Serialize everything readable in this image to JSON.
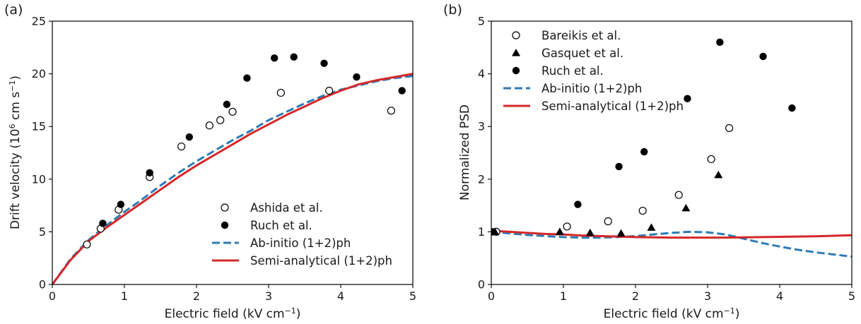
{
  "colors": {
    "ab_initio": "#2c7bb6",
    "semi_analytical": "#d62728",
    "markers": "#000000"
  },
  "chart_data": [
    {
      "type": "scatter",
      "panel": "(a)",
      "xlabel": "Electric field (kV cm",
      "xlabel_sup": "−1",
      "xlabel_end": ")",
      "ylabel": "Drift velocity (10",
      "ylabel_sup": "6",
      "ylabel_mid": " cm s",
      "ylabel_sup2": "−1",
      "ylabel_end": ")",
      "xlim": [
        0,
        5
      ],
      "ylim": [
        0,
        25
      ],
      "xticks": [
        0,
        1,
        2,
        3,
        4,
        5
      ],
      "yticks": [
        0,
        5,
        10,
        15,
        20,
        25
      ],
      "grid": false,
      "legend_position": "lower-right",
      "series": [
        {
          "name": "Ashida et al.",
          "kind": "markers",
          "marker": "open-circle",
          "x": [
            0.48,
            0.67,
            0.92,
            1.35,
            1.79,
            2.18,
            2.33,
            2.5,
            3.17,
            3.84,
            4.7
          ],
          "y": [
            3.8,
            5.3,
            7.1,
            10.2,
            13.1,
            15.1,
            15.6,
            16.4,
            18.2,
            18.4,
            16.5
          ]
        },
        {
          "name": "Ruch et al.",
          "kind": "markers",
          "marker": "filled-circle",
          "x": [
            0.7,
            0.95,
            1.35,
            1.9,
            2.42,
            2.7,
            3.08,
            3.35,
            3.77,
            4.22,
            4.85
          ],
          "y": [
            5.8,
            7.6,
            10.6,
            14.0,
            17.1,
            19.6,
            21.5,
            21.6,
            21.0,
            19.7,
            18.4
          ]
        },
        {
          "name": "Ab-initio (1+2)ph",
          "kind": "line",
          "style": "dashed",
          "x": [
            0,
            0.25,
            0.5,
            0.75,
            1.0,
            1.25,
            1.5,
            1.75,
            2.0,
            2.25,
            2.5,
            2.75,
            3.0,
            3.25,
            3.5,
            3.75,
            4.0,
            4.25,
            4.5,
            4.75,
            5.0
          ],
          "y": [
            0,
            2.4,
            4.2,
            5.6,
            6.9,
            8.1,
            9.4,
            10.6,
            11.7,
            12.7,
            13.7,
            14.6,
            15.6,
            16.4,
            17.2,
            17.9,
            18.5,
            18.9,
            19.3,
            19.6,
            19.8
          ]
        },
        {
          "name": "Semi-analytical (1+2)ph",
          "kind": "line",
          "style": "solid",
          "x": [
            0,
            0.25,
            0.5,
            0.75,
            1.0,
            1.25,
            1.5,
            1.75,
            2.0,
            2.25,
            2.5,
            2.75,
            3.0,
            3.25,
            3.5,
            3.75,
            4.0,
            4.25,
            4.5,
            4.75,
            5.0
          ],
          "y": [
            0,
            2.3,
            4.1,
            5.4,
            6.6,
            7.8,
            9.0,
            10.2,
            11.3,
            12.3,
            13.3,
            14.3,
            15.2,
            16.1,
            16.9,
            17.7,
            18.4,
            19.0,
            19.4,
            19.7,
            20.0
          ]
        }
      ]
    },
    {
      "type": "scatter",
      "panel": "(b)",
      "xlabel": "Electric field (kV cm",
      "xlabel_sup": "−1",
      "xlabel_end": ")",
      "ylabel": "Normalized PSD",
      "xlim": [
        0,
        5
      ],
      "ylim": [
        0,
        5
      ],
      "xticks": [
        0,
        1,
        2,
        3,
        4,
        5
      ],
      "yticks": [
        0,
        1,
        2,
        3,
        4,
        5
      ],
      "grid": false,
      "legend_position": "upper-left",
      "series": [
        {
          "name": "Bareikis et al.",
          "kind": "markers",
          "marker": "open-circle",
          "x": [
            0.07,
            1.05,
            1.62,
            2.1,
            2.6,
            3.05,
            3.3
          ],
          "y": [
            1.0,
            1.1,
            1.2,
            1.4,
            1.7,
            2.38,
            2.97
          ]
        },
        {
          "name": "Gasquet et al.",
          "kind": "markers",
          "marker": "filled-triangle",
          "x": [
            0.05,
            0.95,
            1.37,
            1.8,
            2.22,
            2.7,
            3.15
          ],
          "y": [
            1.0,
            1.0,
            0.98,
            0.97,
            1.08,
            1.45,
            2.08
          ]
        },
        {
          "name": "Ruch et al.",
          "kind": "markers",
          "marker": "filled-circle",
          "x": [
            0.02,
            1.2,
            1.77,
            2.12,
            2.72,
            3.17,
            3.77,
            4.17
          ],
          "y": [
            1.0,
            1.52,
            2.24,
            2.52,
            3.53,
            4.6,
            4.33,
            3.35
          ]
        },
        {
          "name": "Ab-initio (1+2)ph",
          "kind": "line",
          "style": "dashed",
          "x": [
            0,
            0.25,
            0.5,
            0.75,
            1.0,
            1.25,
            1.5,
            1.75,
            2.0,
            2.25,
            2.5,
            2.75,
            3.0,
            3.25,
            3.5,
            3.75,
            4.0,
            4.25,
            4.5,
            4.75,
            5.0
          ],
          "y": [
            1.0,
            0.97,
            0.94,
            0.92,
            0.9,
            0.89,
            0.89,
            0.9,
            0.92,
            0.95,
            0.98,
            1.0,
            0.99,
            0.95,
            0.87,
            0.79,
            0.72,
            0.66,
            0.61,
            0.57,
            0.53
          ]
        },
        {
          "name": "Semi-analytical (1+2)ph",
          "kind": "line",
          "style": "solid",
          "x": [
            0,
            0.25,
            0.5,
            0.75,
            1.0,
            1.25,
            1.5,
            1.75,
            2.0,
            2.25,
            2.5,
            2.75,
            3.0,
            3.25,
            3.5,
            3.75,
            4.0,
            4.25,
            4.5,
            4.75,
            5.0
          ],
          "y": [
            1.02,
            1.0,
            0.98,
            0.96,
            0.95,
            0.93,
            0.92,
            0.91,
            0.9,
            0.895,
            0.89,
            0.89,
            0.89,
            0.89,
            0.895,
            0.9,
            0.905,
            0.91,
            0.915,
            0.925,
            0.935
          ]
        }
      ]
    }
  ]
}
